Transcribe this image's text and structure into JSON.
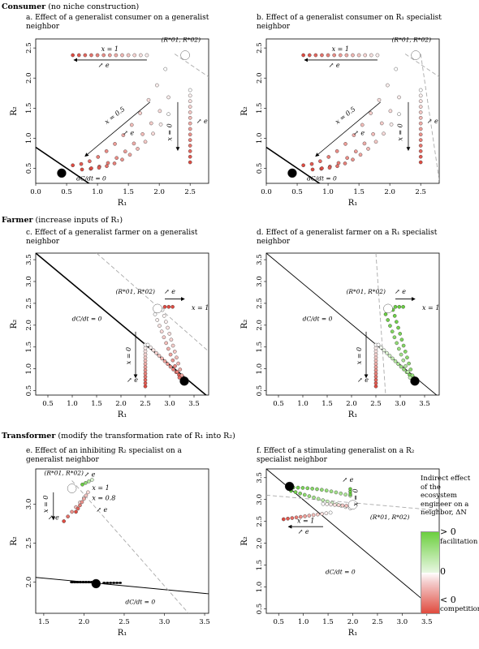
{
  "sections": [
    {
      "title": "Consumer",
      "note": "(no niche construction)"
    },
    {
      "title": "Farmer",
      "note": "(increase inputs of R₁)"
    },
    {
      "title": "Transformer",
      "note": "(modify the transformation rate of R₁ into R₂)"
    }
  ],
  "panels": [
    {
      "title": "a. Effect of a generalist consumer on a generalist neighbor"
    },
    {
      "title": "b. Effect of a generalist consumer on R₁ specialist neighbor"
    },
    {
      "title": "c. Effect of a generalist farmer on a generalist neighbor"
    },
    {
      "title": "d. Effect of a generalist farmer on a R₁ specialist neighbor"
    },
    {
      "title": "e. Effect of an inhibiting R₂ specialist on a generalist neighbor"
    },
    {
      "title": "f. Effect of a stimulating generalist on a R₂ specialist neighbor"
    }
  ],
  "legend": {
    "title": "Indirect effect of the ecosystem engineer on a neighbor, ΔN",
    "pos_label": "> 0",
    "pos_desc": "facilitation",
    "zero_label": "0",
    "neg_label": "< 0",
    "neg_desc": "competition",
    "colors": {
      "facilitation": "#6ccf3f",
      "neutral": "#ffffff",
      "competition": "#e04b3e"
    }
  },
  "chart_data": [
    {
      "type": "scatter",
      "xlabel": "R₁",
      "ylabel": "R₂",
      "xlim": [
        0,
        2.8
      ],
      "ylim": [
        0.25,
        2.65
      ],
      "xticks": [
        "0.0",
        "0.5",
        "1.0",
        "1.5",
        "2.0",
        "2.5"
      ],
      "yticks": [
        "0.5",
        "1.0",
        "1.5",
        "2.0",
        "2.5"
      ],
      "annotations": [
        "x = 1",
        "↗ e",
        "x = 0.5",
        "↗ e",
        "x = 0",
        "↗ e",
        "dC/dt = 0",
        "(R*01, R*02)"
      ]
    },
    {
      "type": "scatter",
      "xlabel": "R₁",
      "ylabel": "R₂",
      "xlim": [
        0,
        2.8
      ],
      "ylim": [
        0.25,
        2.65
      ],
      "xticks": [
        "0.0",
        "0.5",
        "1.0",
        "1.5",
        "2.0",
        "2.5"
      ],
      "yticks": [
        "0.5",
        "1.0",
        "1.5",
        "2.0",
        "2.5"
      ],
      "annotations": [
        "x = 1",
        "↗ e",
        "x = 0.5",
        "↗ e",
        "x = 0",
        "↗ e",
        "dC/dt = 0",
        "(R*01, R*02)"
      ]
    },
    {
      "type": "scatter",
      "xlabel": "R₁",
      "ylabel": "R₂",
      "xlim": [
        0.25,
        3.8
      ],
      "ylim": [
        0.4,
        3.65
      ],
      "xticks": [
        "0.5",
        "1.0",
        "1.5",
        "2.0",
        "2.5",
        "3.0",
        "3.5"
      ],
      "yticks": [
        "0.5",
        "1.0",
        "1.5",
        "2.0",
        "2.5",
        "3.0",
        "3.5"
      ],
      "annotations": [
        "↗ e",
        "x = 1",
        "x = 0",
        "↗ e",
        "dC/dt = 0",
        "(R*01, R*02)"
      ]
    },
    {
      "type": "scatter",
      "xlabel": "R₁",
      "ylabel": "R₂",
      "xlim": [
        0.25,
        3.8
      ],
      "ylim": [
        0.4,
        3.65
      ],
      "xticks": [
        "0.5",
        "1.0",
        "1.5",
        "2.0",
        "2.5",
        "3.0",
        "3.5"
      ],
      "yticks": [
        "0.5",
        "1.0",
        "1.5",
        "2.0",
        "2.5",
        "3.0",
        "3.5"
      ],
      "annotations": [
        "↗ e",
        "x = 1",
        "x = 0",
        "↗ e",
        "dC/dt = 0",
        "(R*01, R*02)"
      ]
    },
    {
      "type": "scatter",
      "xlabel": "R₁",
      "ylabel": "R₂",
      "xlim": [
        1.4,
        3.55
      ],
      "ylim": [
        1.6,
        3.45
      ],
      "xticks": [
        "1.5",
        "2.0",
        "2.5",
        "3.0",
        "3.5"
      ],
      "yticks": [
        "2.0",
        "2.5",
        "3.0"
      ],
      "annotations": [
        "(R*01, R*02)",
        "↗ e",
        "x = 1",
        "x = 0.8",
        "↗ e",
        "x = 0",
        "↗ e",
        "dC/dt = 0"
      ]
    },
    {
      "type": "scatter",
      "xlabel": "R₁",
      "ylabel": "R₂",
      "xlim": [
        0.25,
        3.75
      ],
      "ylim": [
        0.4,
        3.7
      ],
      "xticks": [
        "0.5",
        "1.0",
        "1.5",
        "2.0",
        "2.5",
        "3.0",
        "3.5"
      ],
      "yticks": [
        "0.5",
        "1.0",
        "1.5",
        "2.0",
        "2.5",
        "3.0",
        "3.5"
      ],
      "annotations": [
        "↗ e",
        "x = 0",
        "x = 1",
        "↗ e",
        "dC/dt = 0",
        "(R*01, R*02)"
      ]
    }
  ]
}
